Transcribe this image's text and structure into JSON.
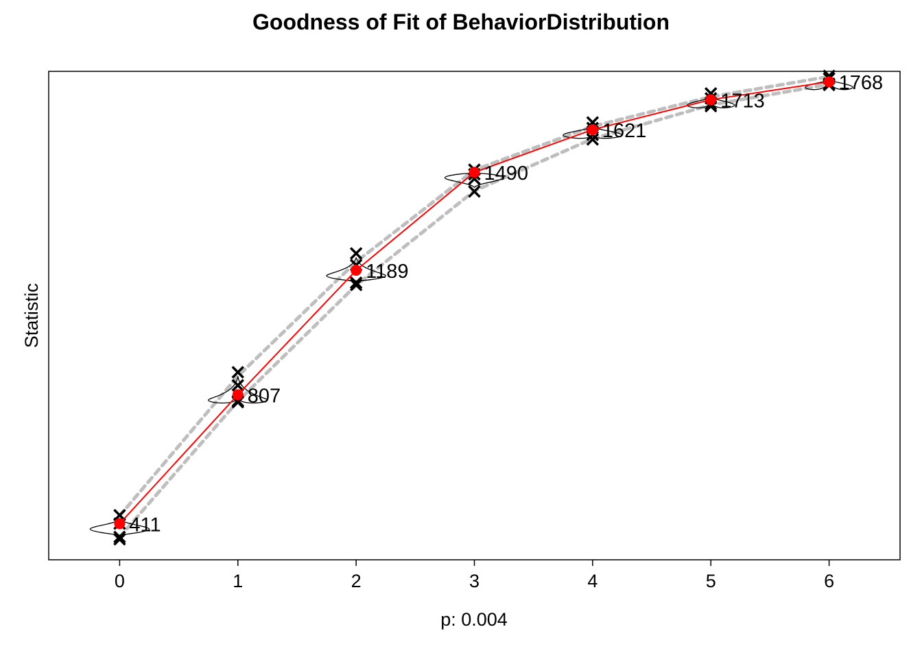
{
  "chart_data": {
    "type": "line",
    "title": "Goodness of Fit of BehaviorDistribution",
    "xlabel": "p: 0.004",
    "ylabel": "Statistic",
    "x": [
      0,
      1,
      2,
      3,
      4,
      5,
      6
    ],
    "x_tick_labels": [
      "0",
      "1",
      "2",
      "3",
      "4",
      "5",
      "6"
    ],
    "xlim": [
      -0.6,
      6.6
    ],
    "ylim": [
      300,
      1800
    ],
    "y_axis_ticks_shown": false,
    "grid": false,
    "legend": "none",
    "series": [
      {
        "role": "observed",
        "values": [
          411,
          807,
          1189,
          1490,
          1621,
          1713,
          1768
        ],
        "data_labels": [
          "411",
          "807",
          "1189",
          "1490",
          "1621",
          "1713",
          "1768"
        ]
      },
      {
        "role": "simulated-upper-band",
        "values": [
          435,
          864,
          1215,
          1497,
          1631,
          1722,
          1784
        ]
      },
      {
        "role": "simulated-lower-band",
        "values": [
          370,
          787,
          1143,
          1433,
          1593,
          1697,
          1760
        ]
      }
    ],
    "simulated_extremes": {
      "max": [
        437,
        876,
        1241,
        1498,
        1643,
        1732,
        1786
      ],
      "min": [
        363,
        784,
        1144,
        1431,
        1591,
        1693,
        1758
      ],
      "inner_high": [
        411,
        836,
        1205,
        1484,
        1626,
        1717,
        1778
      ],
      "inner_low": [
        370,
        788,
        1151,
        1470,
        1605,
        1700,
        1762
      ]
    },
    "violin_widths": [
      0.25,
      0.25,
      0.25,
      0.25,
      0.25,
      0.2,
      0.2
    ],
    "colors": {
      "observed": "#ff0000",
      "band": "#bebebe",
      "marker": "#000000",
      "axis": "#000000"
    }
  }
}
